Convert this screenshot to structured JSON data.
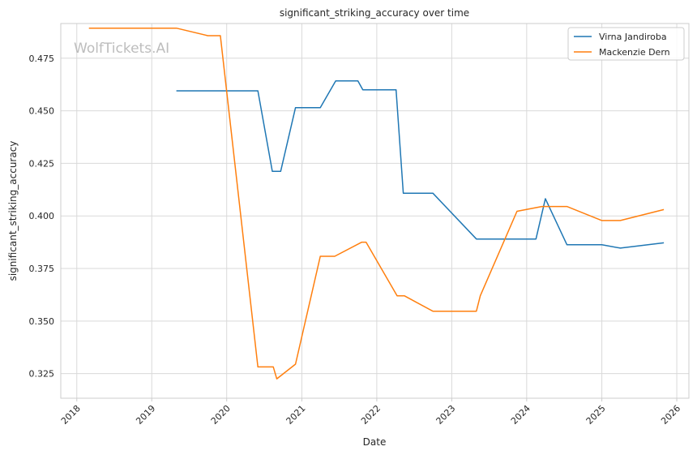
{
  "chart_data": {
    "type": "line",
    "title": "significant_striking_accuracy over time",
    "xlabel": "Date",
    "ylabel": "significant_striking_accuracy",
    "watermark": "WolfTickets.AI",
    "x_ticks": [
      "2018",
      "2019",
      "2020",
      "2021",
      "2022",
      "2023",
      "2024",
      "2025",
      "2026"
    ],
    "y_ticks": [
      "0.325",
      "0.350",
      "0.375",
      "0.400",
      "0.425",
      "0.450",
      "0.475"
    ],
    "xlim": [
      "2017-10-15",
      "2026-03-01"
    ],
    "ylim": [
      0.3133,
      0.4915
    ],
    "grid": true,
    "legend_position": "top-right",
    "series": [
      {
        "name": "Virna Jandiroba",
        "color": "#1f77b4",
        "points": [
          [
            "2019-05-01",
            0.4595
          ],
          [
            "2020-06-01",
            0.4595
          ],
          [
            "2020-08-10",
            0.4212
          ],
          [
            "2020-09-20",
            0.4212
          ],
          [
            "2020-12-01",
            0.4515
          ],
          [
            "2021-04-01",
            0.4515
          ],
          [
            "2021-06-15",
            0.4642
          ],
          [
            "2021-10-01",
            0.4642
          ],
          [
            "2021-10-25",
            0.46
          ],
          [
            "2022-04-05",
            0.46
          ],
          [
            "2022-05-10",
            0.4108
          ],
          [
            "2022-10-01",
            0.4108
          ],
          [
            "2023-05-01",
            0.389
          ],
          [
            "2024-02-15",
            0.389
          ],
          [
            "2024-04-01",
            0.4082
          ],
          [
            "2024-07-15",
            0.3863
          ],
          [
            "2025-01-01",
            0.3863
          ],
          [
            "2025-04-01",
            0.3847
          ],
          [
            "2025-10-30",
            0.3872
          ]
        ]
      },
      {
        "name": "Mackenzie Dern",
        "color": "#ff7f0e",
        "points": [
          [
            "2018-03-01",
            0.4893
          ],
          [
            "2019-05-01",
            0.4893
          ],
          [
            "2019-10-01",
            0.4857
          ],
          [
            "2019-12-01",
            0.4857
          ],
          [
            "2020-06-01",
            0.3282
          ],
          [
            "2020-08-15",
            0.3282
          ],
          [
            "2020-09-01",
            0.3225
          ],
          [
            "2020-12-01",
            0.3295
          ],
          [
            "2021-04-01",
            0.3808
          ],
          [
            "2021-06-10",
            0.3808
          ],
          [
            "2021-10-20",
            0.3875
          ],
          [
            "2021-11-10",
            0.3875
          ],
          [
            "2022-04-10",
            0.362
          ],
          [
            "2022-05-15",
            0.362
          ],
          [
            "2022-10-01",
            0.3547
          ],
          [
            "2023-05-01",
            0.3547
          ],
          [
            "2023-05-20",
            0.362
          ],
          [
            "2023-11-15",
            0.4022
          ],
          [
            "2024-03-15",
            0.4045
          ],
          [
            "2024-07-15",
            0.4045
          ],
          [
            "2025-01-01",
            0.3978
          ],
          [
            "2025-04-01",
            0.3978
          ],
          [
            "2025-10-30",
            0.403
          ]
        ]
      }
    ]
  }
}
